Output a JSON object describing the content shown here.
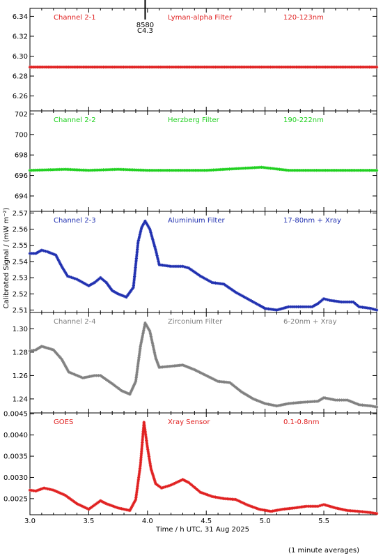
{
  "figure": {
    "ylabel": "Calibrated Signal / (mW m⁻²)",
    "xlabel": "Time / h UTC, 31 Aug 2025",
    "footnote": "(1 minute averages)"
  },
  "chart_data": [
    {
      "type": "scatter",
      "channel": "Channel 2-1",
      "filter": "Lyman-alpha Filter",
      "band": "120-123nm",
      "color": "#e02020",
      "xlim": [
        3.0,
        5.95
      ],
      "ylim": [
        6.245,
        6.348
      ],
      "yticks": [
        "6.26",
        "6.28",
        "6.30",
        "6.32",
        "6.34"
      ],
      "flare_marker": {
        "x": 3.98,
        "label_top": "8580",
        "label_bottom": "C4.3"
      },
      "series": [
        {
          "points": [
            [
              3.0,
              6.289
            ],
            [
              3.5,
              6.289
            ],
            [
              4.0,
              6.289
            ],
            [
              4.5,
              6.289
            ],
            [
              5.0,
              6.289
            ],
            [
              5.5,
              6.289
            ],
            [
              5.95,
              6.289
            ]
          ]
        }
      ]
    },
    {
      "type": "scatter",
      "channel": "Channel 2-2",
      "filter": "Herzberg Filter",
      "band": "190-222nm",
      "color": "#20d020",
      "xlim": [
        3.0,
        5.95
      ],
      "ylim": [
        692.5,
        702.3
      ],
      "yticks": [
        "694",
        "696",
        "698",
        "700",
        "702"
      ],
      "series": [
        {
          "points": [
            [
              3.0,
              696.5
            ],
            [
              3.3,
              696.6
            ],
            [
              3.5,
              696.5
            ],
            [
              3.75,
              696.6
            ],
            [
              4.0,
              696.5
            ],
            [
              4.5,
              696.5
            ],
            [
              4.97,
              696.8
            ],
            [
              5.2,
              696.5
            ],
            [
              5.5,
              696.5
            ],
            [
              5.95,
              696.5
            ]
          ]
        }
      ]
    },
    {
      "type": "scatter",
      "channel": "Channel 2-3",
      "filter": "Aluminium Filter",
      "band": "17-80nm + Xray",
      "color": "#2030b0",
      "xlim": [
        3.0,
        5.95
      ],
      "ylim": [
        2.5085,
        2.571
      ],
      "yticks": [
        "2.51",
        "2.52",
        "2.53",
        "2.54",
        "2.55",
        "2.56",
        "2.57"
      ],
      "series": [
        {
          "points": [
            [
              3.0,
              2.545
            ],
            [
              3.05,
              2.545
            ],
            [
              3.1,
              2.547
            ],
            [
              3.15,
              2.546
            ],
            [
              3.22,
              2.544
            ],
            [
              3.27,
              2.537
            ],
            [
              3.32,
              2.531
            ],
            [
              3.4,
              2.529
            ],
            [
              3.5,
              2.525
            ],
            [
              3.55,
              2.527
            ],
            [
              3.6,
              2.53
            ],
            [
              3.65,
              2.527
            ],
            [
              3.7,
              2.522
            ],
            [
              3.75,
              2.52
            ],
            [
              3.82,
              2.518
            ],
            [
              3.88,
              2.524
            ],
            [
              3.92,
              2.552
            ],
            [
              3.95,
              2.561
            ],
            [
              3.98,
              2.565
            ],
            [
              4.02,
              2.56
            ],
            [
              4.07,
              2.547
            ],
            [
              4.1,
              2.538
            ],
            [
              4.2,
              2.537
            ],
            [
              4.3,
              2.537
            ],
            [
              4.35,
              2.536
            ],
            [
              4.45,
              2.531
            ],
            [
              4.55,
              2.527
            ],
            [
              4.65,
              2.526
            ],
            [
              4.75,
              2.521
            ],
            [
              4.85,
              2.517
            ],
            [
              4.95,
              2.513
            ],
            [
              5.0,
              2.511
            ],
            [
              5.1,
              2.51
            ],
            [
              5.2,
              2.512
            ],
            [
              5.3,
              2.512
            ],
            [
              5.4,
              2.512
            ],
            [
              5.45,
              2.514
            ],
            [
              5.5,
              2.517
            ],
            [
              5.55,
              2.516
            ],
            [
              5.65,
              2.515
            ],
            [
              5.75,
              2.515
            ],
            [
              5.8,
              2.512
            ],
            [
              5.9,
              2.511
            ],
            [
              5.95,
              2.51
            ]
          ]
        }
      ]
    },
    {
      "type": "scatter",
      "channel": "Channel 2-4",
      "filter": "Zirconium Filter",
      "band": "6-20nm + Xray",
      "color": "#808080",
      "xlim": [
        3.0,
        5.95
      ],
      "ylim": [
        1.228,
        1.314
      ],
      "yticks": [
        "1.24",
        "1.26",
        "1.28",
        "1.30"
      ],
      "series": [
        {
          "points": [
            [
              3.0,
              1.281
            ],
            [
              3.05,
              1.282
            ],
            [
              3.1,
              1.285
            ],
            [
              3.2,
              1.282
            ],
            [
              3.27,
              1.274
            ],
            [
              3.33,
              1.263
            ],
            [
              3.45,
              1.258
            ],
            [
              3.55,
              1.26
            ],
            [
              3.6,
              1.26
            ],
            [
              3.7,
              1.253
            ],
            [
              3.78,
              1.247
            ],
            [
              3.85,
              1.244
            ],
            [
              3.9,
              1.255
            ],
            [
              3.94,
              1.285
            ],
            [
              3.98,
              1.305
            ],
            [
              4.02,
              1.298
            ],
            [
              4.07,
              1.275
            ],
            [
              4.1,
              1.267
            ],
            [
              4.2,
              1.268
            ],
            [
              4.3,
              1.269
            ],
            [
              4.4,
              1.265
            ],
            [
              4.5,
              1.26
            ],
            [
              4.6,
              1.255
            ],
            [
              4.7,
              1.254
            ],
            [
              4.8,
              1.246
            ],
            [
              4.9,
              1.24
            ],
            [
              5.0,
              1.236
            ],
            [
              5.1,
              1.234
            ],
            [
              5.2,
              1.236
            ],
            [
              5.3,
              1.237
            ],
            [
              5.45,
              1.238
            ],
            [
              5.5,
              1.241
            ],
            [
              5.6,
              1.239
            ],
            [
              5.7,
              1.239
            ],
            [
              5.8,
              1.235
            ],
            [
              5.9,
              1.234
            ],
            [
              5.95,
              1.233
            ]
          ]
        }
      ]
    },
    {
      "type": "scatter",
      "channel": "GOES",
      "filter": "Xray Sensor",
      "band": "0.1-0.8nm",
      "color": "#e02020",
      "xlim": [
        3.0,
        5.95
      ],
      "ylim": [
        0.00212,
        0.00452
      ],
      "yticks": [
        "0.0025",
        "0.0030",
        "0.0035",
        "0.0040",
        "0.0045"
      ],
      "series": [
        {
          "points": [
            [
              3.0,
              0.0027
            ],
            [
              3.05,
              0.00268
            ],
            [
              3.12,
              0.00275
            ],
            [
              3.2,
              0.0027
            ],
            [
              3.3,
              0.00258
            ],
            [
              3.4,
              0.00238
            ],
            [
              3.5,
              0.00225
            ],
            [
              3.55,
              0.00235
            ],
            [
              3.6,
              0.00245
            ],
            [
              3.65,
              0.00238
            ],
            [
              3.75,
              0.00228
            ],
            [
              3.85,
              0.00222
            ],
            [
              3.9,
              0.00248
            ],
            [
              3.94,
              0.0033
            ],
            [
              3.97,
              0.0043
            ],
            [
              4.0,
              0.0037
            ],
            [
              4.03,
              0.0032
            ],
            [
              4.07,
              0.00285
            ],
            [
              4.12,
              0.00275
            ],
            [
              4.2,
              0.00282
            ],
            [
              4.3,
              0.00295
            ],
            [
              4.35,
              0.00288
            ],
            [
              4.45,
              0.00265
            ],
            [
              4.55,
              0.00255
            ],
            [
              4.65,
              0.0025
            ],
            [
              4.75,
              0.00248
            ],
            [
              4.85,
              0.00235
            ],
            [
              4.95,
              0.00225
            ],
            [
              5.05,
              0.0022
            ],
            [
              5.15,
              0.00225
            ],
            [
              5.25,
              0.00228
            ],
            [
              5.35,
              0.00232
            ],
            [
              5.45,
              0.00232
            ],
            [
              5.5,
              0.00236
            ],
            [
              5.6,
              0.00228
            ],
            [
              5.7,
              0.00222
            ],
            [
              5.8,
              0.0022
            ],
            [
              5.9,
              0.00217
            ],
            [
              5.95,
              0.00215
            ]
          ]
        }
      ]
    }
  ],
  "xticks": [
    "3.0",
    "3.5",
    "4.0",
    "4.5",
    "5.0",
    "5.5"
  ]
}
